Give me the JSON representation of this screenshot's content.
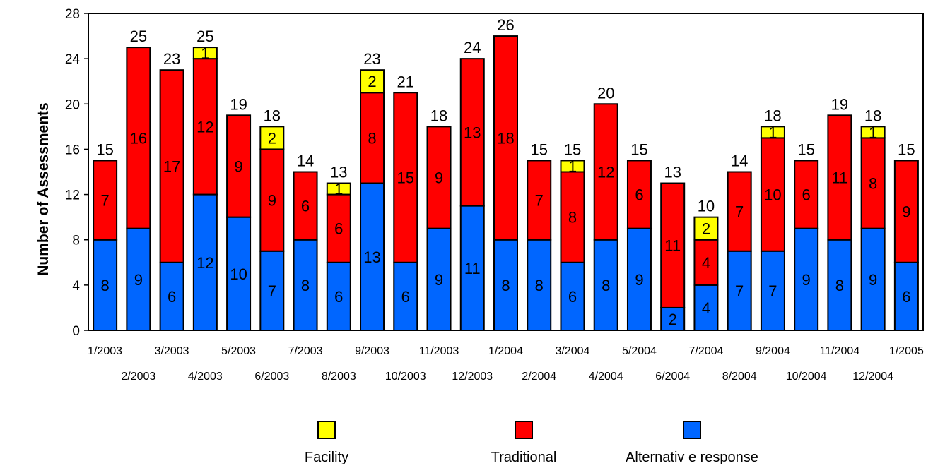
{
  "chart_data": {
    "type": "bar",
    "stacked": true,
    "ylabel": "Number of Assessments",
    "xlabel": "",
    "ylim": [
      0,
      28
    ],
    "yticks": [
      0,
      4,
      8,
      12,
      16,
      20,
      24,
      28
    ],
    "categories": [
      "1/2003",
      "2/2003",
      "3/2003",
      "4/2003",
      "5/2003",
      "6/2003",
      "7/2003",
      "8/2003",
      "9/2003",
      "10/2003",
      "11/2003",
      "12/2003",
      "1/2004",
      "2/2004",
      "3/2004",
      "4/2004",
      "5/2004",
      "6/2004",
      "7/2004",
      "8/2004",
      "9/2004",
      "10/2004",
      "11/2004",
      "12/2004",
      "1/2005"
    ],
    "series": [
      {
        "name": "Alternativ e response",
        "color": "#0066ff",
        "values": [
          8,
          9,
          6,
          12,
          10,
          7,
          8,
          6,
          13,
          6,
          9,
          11,
          8,
          8,
          6,
          8,
          9,
          2,
          4,
          7,
          7,
          9,
          8,
          9,
          6
        ]
      },
      {
        "name": "Traditional",
        "color": "#ff0000",
        "values": [
          7,
          16,
          17,
          12,
          9,
          9,
          6,
          6,
          8,
          15,
          9,
          13,
          18,
          7,
          8,
          12,
          6,
          11,
          4,
          7,
          10,
          6,
          11,
          8,
          9
        ]
      },
      {
        "name": "Facility",
        "color": "#ffff00",
        "values": [
          0,
          0,
          0,
          1,
          0,
          2,
          0,
          1,
          2,
          0,
          0,
          0,
          0,
          0,
          1,
          0,
          0,
          0,
          2,
          0,
          1,
          0,
          0,
          1,
          0
        ]
      }
    ],
    "totals": [
      15,
      25,
      23,
      25,
      19,
      18,
      14,
      13,
      23,
      21,
      18,
      24,
      26,
      15,
      15,
      20,
      15,
      13,
      10,
      14,
      18,
      15,
      19,
      18,
      15
    ],
    "legend": {
      "placement": "bottom",
      "items": [
        "Facility",
        "Traditional",
        "Alternativ e response"
      ]
    },
    "grid": false
  }
}
